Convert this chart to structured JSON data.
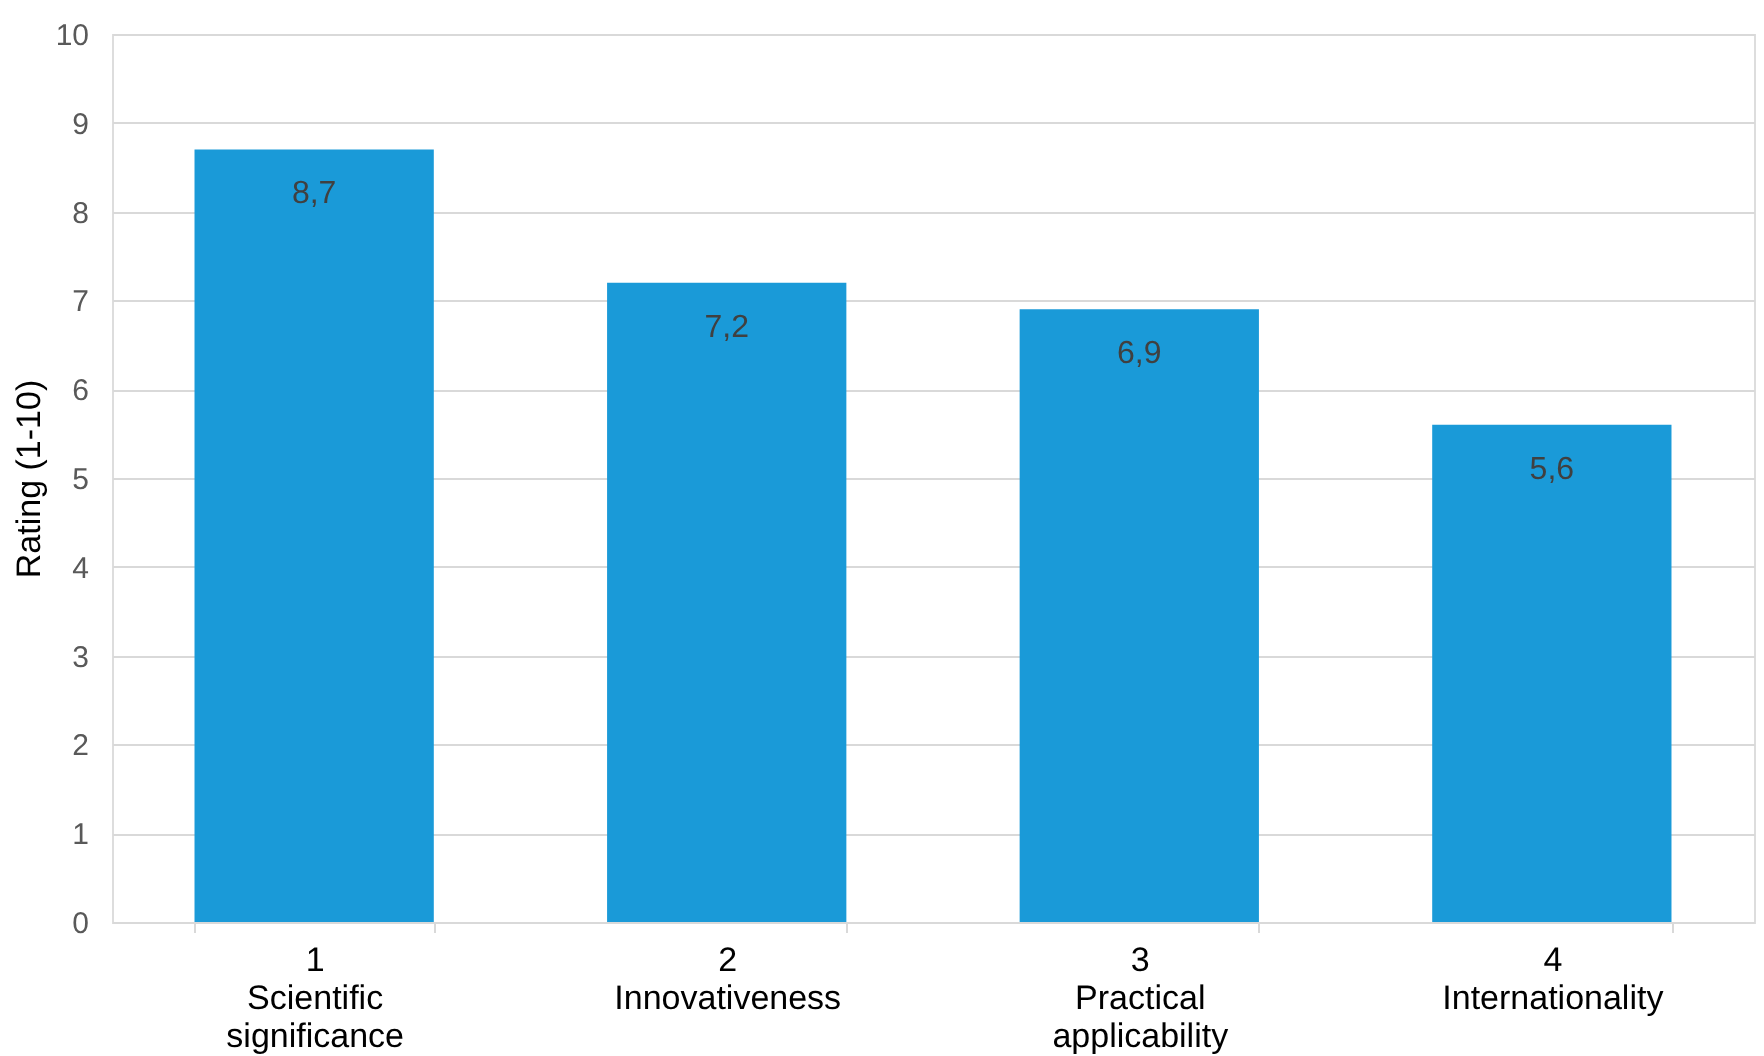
{
  "chart_data": {
    "type": "bar",
    "ylabel": "Rating (1-10)",
    "categories": [
      "1\nScientific\nsignificance",
      "2\nInnovativeness",
      "3\nPractical\napplicability",
      "4\nInternationality"
    ],
    "values": [
      8.7,
      7.2,
      6.9,
      5.6
    ],
    "color": "#1a9ad8",
    "value_labels": [
      "8,7",
      "7,2",
      "6,9",
      "5,6"
    ],
    "ylim": [
      0,
      10
    ],
    "yticks": [
      0,
      1,
      2,
      3,
      4,
      5,
      6,
      7,
      8,
      9,
      10
    ],
    "grid": "y"
  }
}
